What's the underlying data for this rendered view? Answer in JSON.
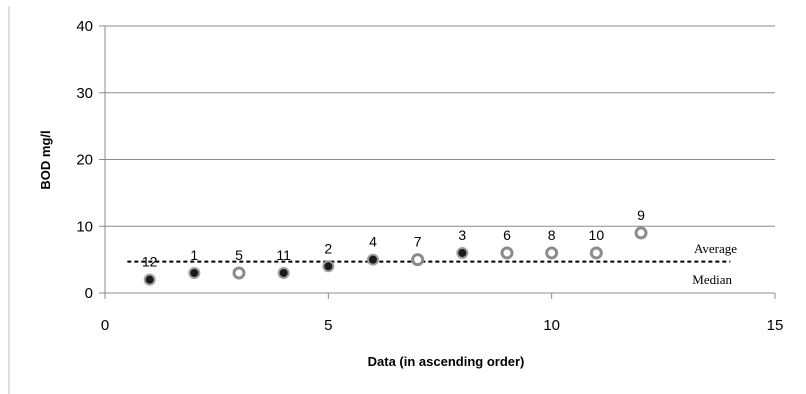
{
  "chart_data": {
    "type": "scatter",
    "title": "",
    "xlabel": "Data (in ascending order)",
    "ylabel": "BOD mg/l",
    "xlim": [
      0,
      15
    ],
    "ylim": [
      0,
      40
    ],
    "x_ticks": [
      "0",
      "5",
      "10",
      "15"
    ],
    "y_ticks": [
      "0",
      "10",
      "20",
      "30",
      "40"
    ],
    "grid": "horizontal",
    "points": [
      {
        "x": 1,
        "y": 2,
        "label": "12",
        "style": "filled"
      },
      {
        "x": 2,
        "y": 3,
        "label": "1",
        "style": "filled"
      },
      {
        "x": 3,
        "y": 3,
        "label": "5",
        "style": "hollow"
      },
      {
        "x": 4,
        "y": 3,
        "label": "11",
        "style": "filled"
      },
      {
        "x": 5,
        "y": 4,
        "label": "2",
        "style": "filled"
      },
      {
        "x": 6,
        "y": 5,
        "label": "4",
        "style": "filled"
      },
      {
        "x": 7,
        "y": 5,
        "label": "7",
        "style": "hollow"
      },
      {
        "x": 8,
        "y": 6,
        "label": "3",
        "style": "filled"
      },
      {
        "x": 9,
        "y": 6,
        "label": "6",
        "style": "hollow"
      },
      {
        "x": 10,
        "y": 6,
        "label": "8",
        "style": "hollow"
      },
      {
        "x": 11,
        "y": 6,
        "label": "10",
        "style": "hollow"
      },
      {
        "x": 12,
        "y": 9,
        "label": "9",
        "style": "hollow"
      }
    ],
    "reference_line": {
      "y": 4.7,
      "x_from": 0.5,
      "x_to": 14,
      "style": "dashed"
    },
    "reference_labels": {
      "average": "Average",
      "median": "Median"
    }
  }
}
